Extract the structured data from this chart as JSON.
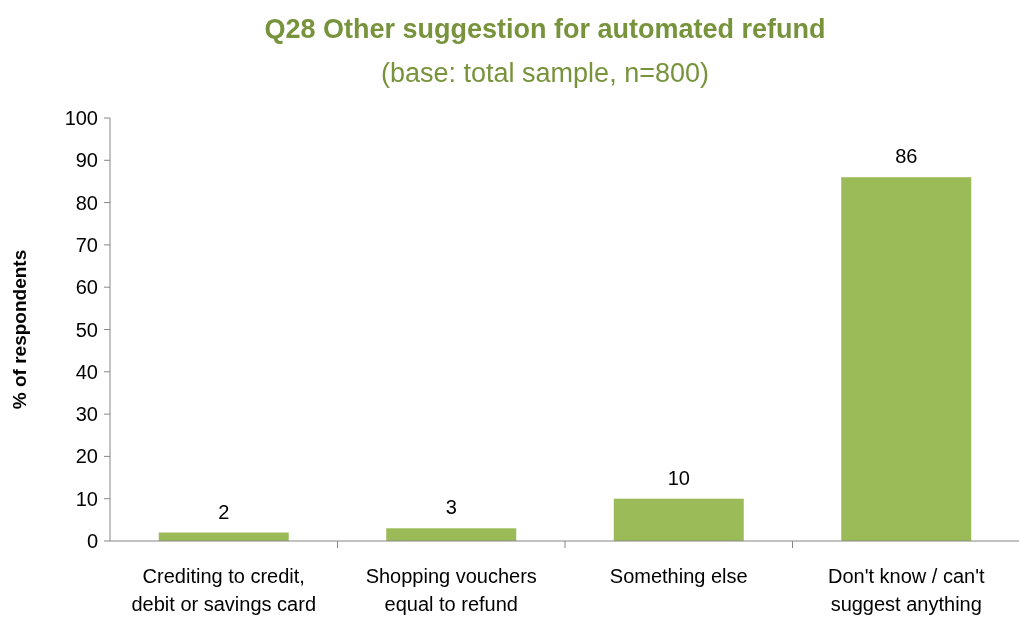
{
  "chart_data": {
    "type": "bar",
    "title": "Q28 Other suggestion for automated refund",
    "subtitle": "(base: total sample, n=800)",
    "ylabel": "% of respondents",
    "categories": [
      "Crediting to credit, debit or savings card",
      "Shopping vouchers equal to refund",
      "Something else",
      "Don't know / can't suggest anything"
    ],
    "values": [
      2,
      3,
      10,
      86
    ],
    "color": "#9bbb59",
    "ylim": [
      0,
      100
    ],
    "yticks": [
      0,
      10,
      20,
      30,
      40,
      50,
      60,
      70,
      80,
      90,
      100
    ],
    "grid": false,
    "data_labels": true
  }
}
